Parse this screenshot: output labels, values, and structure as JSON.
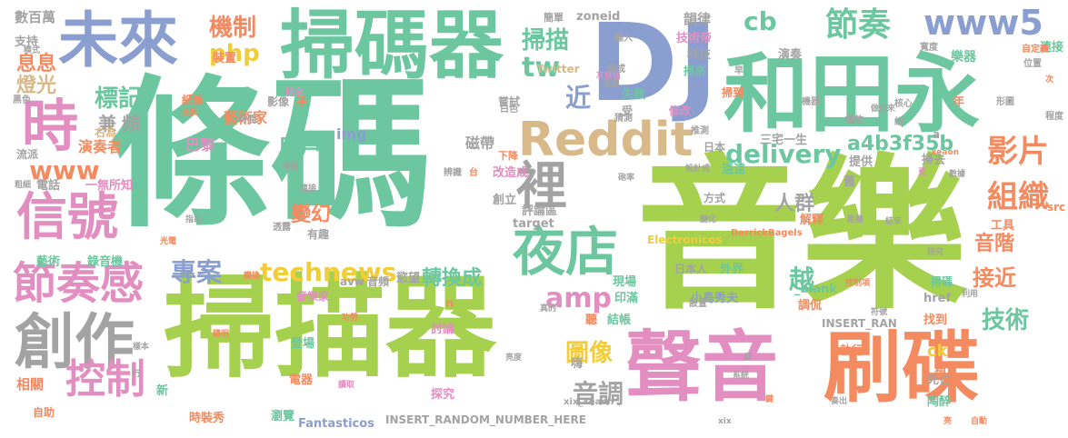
{
  "palette": {
    "teal": "#6cc7a0",
    "green": "#a6d14e",
    "grey": "#a3a3a3",
    "blue": "#8a9fcf",
    "orange": "#f48a5f",
    "pink": "#e28ec0",
    "yellow": "#f2cd3a",
    "tan": "#d8b98a"
  },
  "words": [
    {
      "text": "條碼",
      "color": "teal"
    },
    {
      "text": "音樂",
      "color": "green"
    },
    {
      "text": "掃描器",
      "color": "green"
    },
    {
      "text": "掃碼器",
      "color": "teal"
    },
    {
      "text": "DJ",
      "color": "blue"
    },
    {
      "text": "和田永",
      "color": "teal"
    },
    {
      "text": "聲音",
      "color": "pink"
    },
    {
      "text": "刷碟",
      "color": "orange"
    },
    {
      "text": "未來",
      "color": "blue"
    },
    {
      "text": "Reddit",
      "color": "tan"
    },
    {
      "text": "創作",
      "color": "grey"
    },
    {
      "text": "信號",
      "color": "pink"
    },
    {
      "text": "節奏感",
      "color": "pink"
    },
    {
      "text": "www5",
      "color": "blue"
    },
    {
      "text": "時",
      "color": "pink"
    },
    {
      "text": "裡",
      "color": "grey"
    },
    {
      "text": "夜店",
      "color": "teal"
    },
    {
      "text": "控制",
      "color": "pink"
    },
    {
      "text": "節奏",
      "color": "teal"
    },
    {
      "text": "機制",
      "color": "orange"
    },
    {
      "text": "technews",
      "color": "yellow"
    },
    {
      "text": "delivery",
      "color": "teal"
    },
    {
      "text": "www",
      "color": "orange"
    },
    {
      "text": "php",
      "color": "yellow"
    },
    {
      "text": "tw",
      "color": "teal"
    },
    {
      "text": "專案",
      "color": "blue"
    },
    {
      "text": "影片",
      "color": "orange"
    },
    {
      "text": "組織",
      "color": "orange"
    },
    {
      "text": "amp",
      "color": "pink"
    },
    {
      "text": "轉換成",
      "color": "teal"
    },
    {
      "text": "cb",
      "color": "teal"
    },
    {
      "text": "掃描",
      "color": "teal"
    },
    {
      "text": "近",
      "color": "blue"
    },
    {
      "text": "用戶",
      "color": "teal"
    },
    {
      "text": "標記",
      "color": "teal"
    },
    {
      "text": "a4b3f35b",
      "color": "teal"
    },
    {
      "text": "音階",
      "color": "orange"
    },
    {
      "text": "技術",
      "color": "teal"
    },
    {
      "text": "接近",
      "color": "orange"
    },
    {
      "text": "人群",
      "color": "grey"
    },
    {
      "text": "變幻",
      "color": "orange"
    },
    {
      "text": "音調",
      "color": "grey"
    },
    {
      "text": "越",
      "color": "teal"
    },
    {
      "text": "圖像",
      "color": "yellow"
    },
    {
      "text": "息息",
      "color": "orange"
    },
    {
      "text": "燈光",
      "color": "tan"
    },
    {
      "text": "數百萬",
      "color": "grey"
    },
    {
      "text": "支持",
      "color": "grey"
    },
    {
      "text": "兼",
      "color": "grey"
    },
    {
      "text": "頻",
      "color": "grey"
    },
    {
      "text": "演奏者",
      "color": "orange"
    },
    {
      "text": "巴黎",
      "color": "pink"
    },
    {
      "text": "藝術家",
      "color": "orange"
    },
    {
      "text": "img",
      "color": "blue"
    },
    {
      "text": "磁帶",
      "color": "grey"
    },
    {
      "text": "zoneid",
      "color": "grey"
    },
    {
      "text": "韻律",
      "color": "grey"
    },
    {
      "text": "技術帝",
      "color": "pink"
    },
    {
      "text": "科技",
      "color": "grey"
    },
    {
      "text": "演奏",
      "color": "grey"
    },
    {
      "text": "樂器",
      "color": "teal"
    },
    {
      "text": "連接",
      "color": "teal"
    },
    {
      "text": "掃去",
      "color": "grey"
    },
    {
      "text": "提供",
      "color": "grey"
    },
    {
      "text": "三宅一生",
      "color": "grey"
    },
    {
      "text": "舊",
      "color": "grey"
    },
    {
      "text": "工具",
      "color": "orange"
    },
    {
      "text": "電話",
      "color": "grey"
    },
    {
      "text": "一無所知",
      "color": "pink"
    },
    {
      "text": "藝術",
      "color": "teal"
    },
    {
      "text": "錄音機",
      "color": "teal"
    },
    {
      "text": "改造成",
      "color": "pink"
    },
    {
      "text": "創立",
      "color": "grey"
    },
    {
      "text": "評論區",
      "color": "grey"
    },
    {
      "text": "target",
      "color": "grey"
    },
    {
      "text": "現場",
      "color": "teal"
    },
    {
      "text": "印滿",
      "color": "teal"
    },
    {
      "text": "href",
      "color": "grey"
    },
    {
      "text": "找到",
      "color": "orange"
    },
    {
      "text": "執行",
      "color": "orange"
    },
    {
      "text": "ck",
      "color": "yellow"
    },
    {
      "text": "死亡",
      "color": "grey"
    },
    {
      "text": "陶醉",
      "color": "teal"
    },
    {
      "text": "相關",
      "color": "orange"
    },
    {
      "text": "新",
      "color": "teal"
    },
    {
      "text": "自助",
      "color": "orange"
    },
    {
      "text": "時裝秀",
      "color": "orange"
    },
    {
      "text": "瀏覽",
      "color": "teal"
    },
    {
      "text": "探究",
      "color": "pink"
    },
    {
      "text": "嗨",
      "color": "grey"
    },
    {
      "text": "聽",
      "color": "orange"
    },
    {
      "text": "結帳",
      "color": "teal"
    },
    {
      "text": "日本人",
      "color": "grey"
    },
    {
      "text": "外界",
      "color": "teal"
    },
    {
      "text": "小島秀夫",
      "color": "blue"
    },
    {
      "text": "_blank",
      "color": "teal"
    },
    {
      "text": "調侃",
      "color": "orange"
    },
    {
      "text": "INSERT_RAN",
      "color": "grey"
    },
    {
      "text": "INSERT_RANDOM_NUMBER_HERE",
      "color": "grey"
    },
    {
      "text": "Fantasticos",
      "color": "blue"
    },
    {
      "text": "xix_xeaon",
      "color": "grey"
    },
    {
      "text": "Electronicos",
      "color": "yellow"
    },
    {
      "text": "DerrickBagels",
      "color": "orange"
    },
    {
      "text": "Twitter",
      "color": "tan"
    },
    {
      "text": "avw",
      "color": "grey"
    },
    {
      "text": "音頻",
      "color": "grey"
    },
    {
      "text": "慾望",
      "color": "grey"
    },
    {
      "text": "登場",
      "color": "teal"
    },
    {
      "text": "討論",
      "color": "pink"
    },
    {
      "text": "n",
      "color": "orange"
    },
    {
      "text": "音樂家",
      "color": "pink"
    },
    {
      "text": "電器",
      "color": "orange"
    },
    {
      "text": "有趣",
      "color": "grey"
    },
    {
      "text": "紙條",
      "color": "orange"
    },
    {
      "text": "影像",
      "color": "grey"
    },
    {
      "text": "手",
      "color": "orange"
    },
    {
      "text": "遠遠",
      "color": "teal"
    },
    {
      "text": "日本",
      "color": "grey"
    },
    {
      "text": "方式",
      "color": "grey"
    },
    {
      "text": "解釋",
      "color": "orange"
    },
    {
      "text": "設置",
      "color": "grey"
    },
    {
      "text": "流派",
      "color": "grey"
    },
    {
      "text": "右為",
      "color": "tan"
    },
    {
      "text": "嘗試",
      "color": "grey"
    },
    {
      "text": "失敗",
      "color": "teal"
    },
    {
      "text": "修改",
      "color": "pink"
    },
    {
      "text": "受",
      "color": "grey"
    },
    {
      "text": "掃來",
      "color": "teal"
    },
    {
      "text": "掃到",
      "color": "orange"
    },
    {
      "text": "年",
      "color": "orange"
    },
    {
      "text": "src",
      "color": "orange"
    },
    {
      "text": "掃碼",
      "color": "teal"
    },
    {
      "text": "想",
      "color": "orange"
    },
    {
      "text": "a",
      "color": "grey"
    },
    {
      "text": "裝置",
      "color": "orange"
    },
    {
      "text": "黑色",
      "color": "grey"
    },
    {
      "text": "白色",
      "color": "grey"
    },
    {
      "text": "透露",
      "color": "grey"
    },
    {
      "text": "簡單",
      "color": "grey"
    },
    {
      "text": "輸入",
      "color": "grey"
    },
    {
      "text": "早",
      "color": "grey"
    },
    {
      "text": "寬度",
      "color": "grey"
    },
    {
      "text": "自定義",
      "color": "orange"
    },
    {
      "text": "位置",
      "color": "grey"
    },
    {
      "text": "模式",
      "color": "grey"
    },
    {
      "text": "灰度值",
      "color": "pink"
    },
    {
      "text": "看成",
      "color": "grey"
    },
    {
      "text": "度值",
      "color": "grey"
    },
    {
      "text": "機器",
      "color": "grey"
    },
    {
      "text": "核心",
      "color": "grey"
    },
    {
      "text": "形圖",
      "color": "grey"
    },
    {
      "text": "程度",
      "color": "grey"
    },
    {
      "text": "推測",
      "color": "grey"
    },
    {
      "text": "播放",
      "color": "grey"
    },
    {
      "text": "組",
      "color": "grey"
    },
    {
      "text": "做出來",
      "color": "grey"
    },
    {
      "text": "猜測",
      "color": "grey"
    },
    {
      "text": "時間",
      "color": "grey"
    },
    {
      "text": "速度",
      "color": "orange"
    },
    {
      "text": "特定",
      "color": "pink"
    },
    {
      "text": "辨識",
      "color": "grey"
    },
    {
      "text": "台",
      "color": "orange"
    },
    {
      "text": "下降",
      "color": "orange"
    },
    {
      "text": "砲率",
      "color": "grey"
    },
    {
      "text": "設計成",
      "color": "grey"
    },
    {
      "text": "更",
      "color": "pink"
    },
    {
      "text": "數據",
      "color": "grey"
    },
    {
      "text": "距離",
      "color": "grey"
    },
    {
      "text": "變化",
      "color": "grey"
    },
    {
      "text": "結束",
      "color": "grey"
    },
    {
      "text": "控制項",
      "color": "orange"
    },
    {
      "text": "利用",
      "color": "grey"
    },
    {
      "text": "符號",
      "color": "grey"
    },
    {
      "text": "真的",
      "color": "grey"
    },
    {
      "text": "發",
      "color": "grey"
    },
    {
      "text": "奏出",
      "color": "grey"
    },
    {
      "text": "鍵",
      "color": "orange"
    },
    {
      "text": "系統",
      "color": "grey"
    },
    {
      "text": "自動",
      "color": "orange"
    },
    {
      "text": "xix",
      "color": "grey"
    },
    {
      "text": "亮",
      "color": "orange"
    },
    {
      "text": "亮度",
      "color": "grey"
    },
    {
      "text": "行",
      "color": "grey"
    },
    {
      "text": "讀取",
      "color": "pink"
    },
    {
      "text": "樣本",
      "color": "grey"
    },
    {
      "text": "聰明",
      "color": "orange"
    },
    {
      "text": "變換",
      "color": "orange"
    },
    {
      "text": "功勞",
      "color": "orange"
    },
    {
      "text": "指出",
      "color": "grey"
    },
    {
      "text": "光電",
      "color": "orange"
    },
    {
      "text": "粗細",
      "color": "grey"
    },
    {
      "text": "憑證",
      "color": "grey"
    },
    {
      "text": "連接",
      "color": "grey"
    },
    {
      "text": "次",
      "color": "orange"
    },
    {
      "text": "_xeaon",
      "color": "orange"
    },
    {
      "text": "研究",
      "color": "grey"
    }
  ]
}
